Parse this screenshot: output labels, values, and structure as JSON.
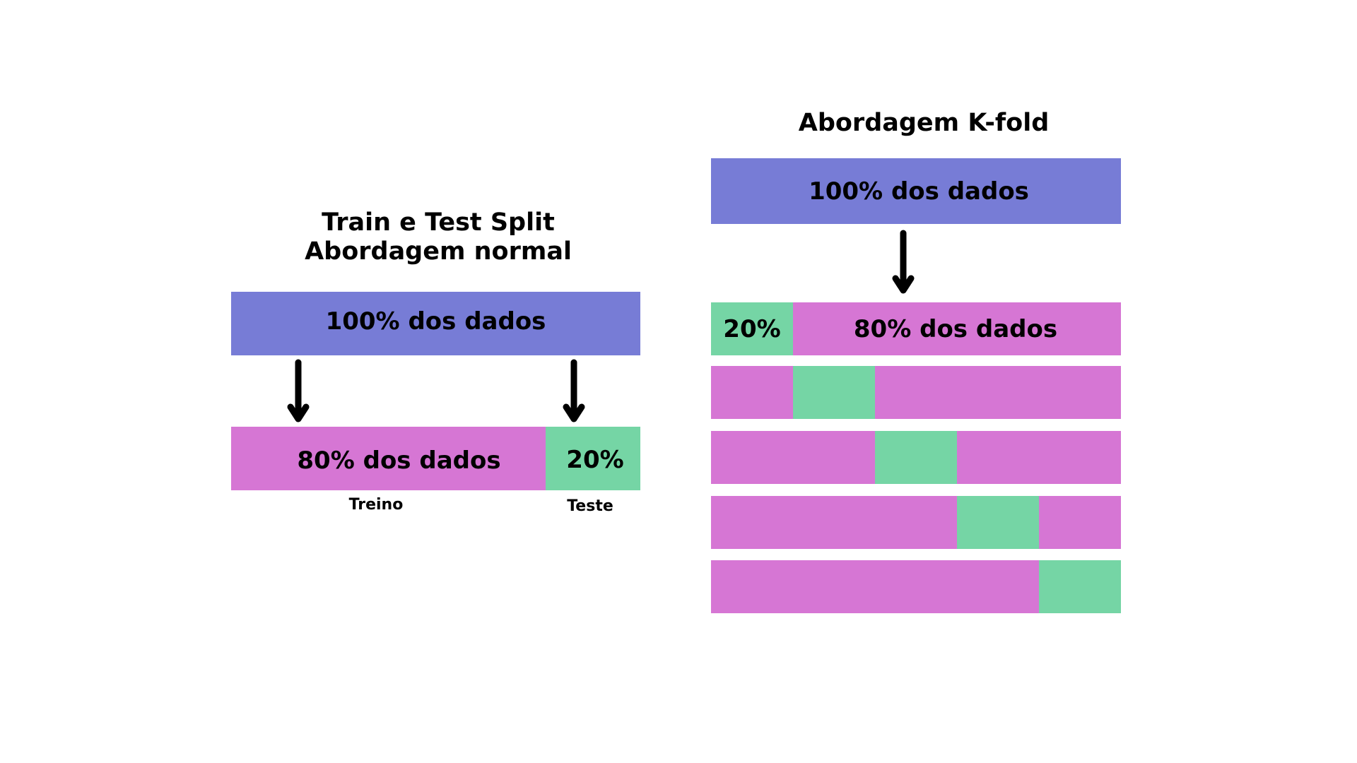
{
  "colors": {
    "total": "#777cd6",
    "train": "#d676d4",
    "test": "#75d5a5",
    "arrow": "#000000",
    "text": "#000000"
  },
  "left_panel": {
    "title_line1": "Train e Test Split",
    "title_line2": "Abordagem normal",
    "total_label": "100% dos dados",
    "train_label": "80% dos dados",
    "test_label": "20%",
    "train_caption": "Treino",
    "test_caption": "Teste"
  },
  "right_panel": {
    "title": "Abordagem K-fold",
    "total_label": "100% dos dados",
    "first_fold_test_label": "20%",
    "first_fold_train_label": "80% dos dados",
    "folds": 5,
    "test_fraction": 0.2
  }
}
